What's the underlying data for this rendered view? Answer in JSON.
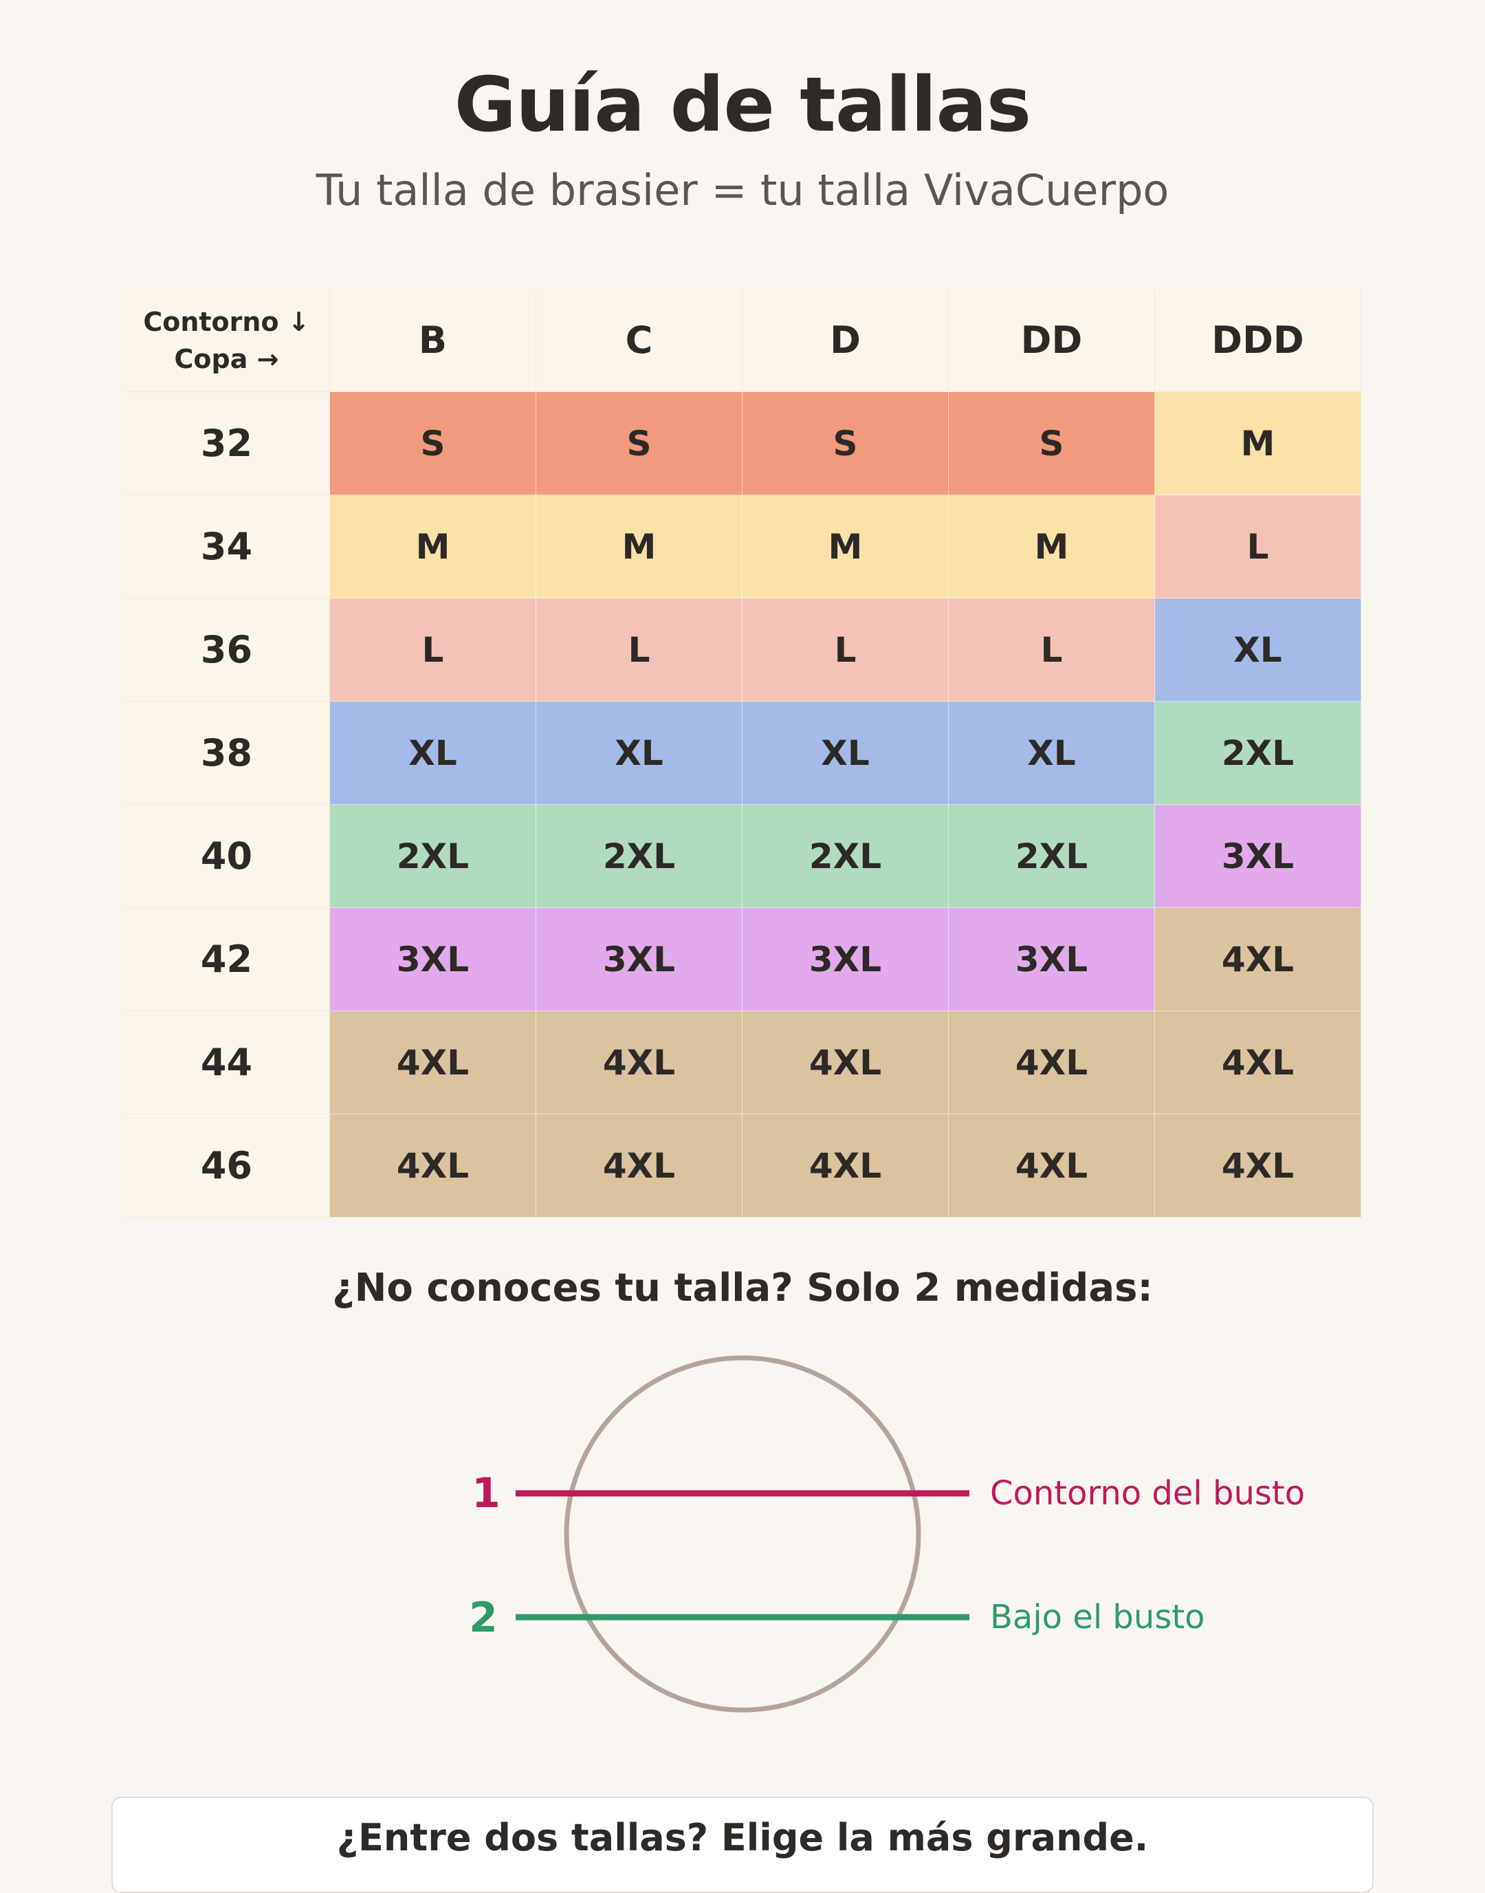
{
  "header": {
    "title": "Guía de tallas",
    "subtitle": "Tu talla de brasier = tu talla VivaCuerpo"
  },
  "table": {
    "corner_line1": "Contorno ↓",
    "corner_line2": "Copa →",
    "cups": [
      "B",
      "C",
      "D",
      "DD",
      "DDD"
    ],
    "rows": [
      {
        "band": "32",
        "sizes": [
          "S",
          "S",
          "S",
          "S",
          "M"
        ]
      },
      {
        "band": "34",
        "sizes": [
          "M",
          "M",
          "M",
          "M",
          "L"
        ]
      },
      {
        "band": "36",
        "sizes": [
          "L",
          "L",
          "L",
          "L",
          "XL"
        ]
      },
      {
        "band": "38",
        "sizes": [
          "XL",
          "XL",
          "XL",
          "XL",
          "2XL"
        ]
      },
      {
        "band": "40",
        "sizes": [
          "2XL",
          "2XL",
          "2XL",
          "2XL",
          "3XL"
        ]
      },
      {
        "band": "42",
        "sizes": [
          "3XL",
          "3XL",
          "3XL",
          "3XL",
          "4XL"
        ]
      },
      {
        "band": "44",
        "sizes": [
          "4XL",
          "4XL",
          "4XL",
          "4XL",
          "4XL"
        ]
      },
      {
        "band": "46",
        "sizes": [
          "4XL",
          "4XL",
          "4XL",
          "4XL",
          "4XL"
        ]
      }
    ],
    "size_colors": {
      "S": "#f29a7e",
      "M": "#f9e1a8",
      "L": "#f4c3b6",
      "XL": "#a4bbea",
      "2XL": "#b0dbbe",
      "3XL": "#e2aaec",
      "4XL": "#dcc39f"
    }
  },
  "measure": {
    "heading": "¿No conoces tu talla? Solo 2 medidas:",
    "step1_number": "1",
    "step1_label": "Contorno del busto",
    "step1_color": "#c2185b",
    "step2_number": "2",
    "step2_label": "Bajo el busto",
    "step2_color": "#2e9a6c",
    "circle_color": "#b5a49c"
  },
  "tip": {
    "text": "¿Entre dos tallas? Elige la más grande."
  }
}
